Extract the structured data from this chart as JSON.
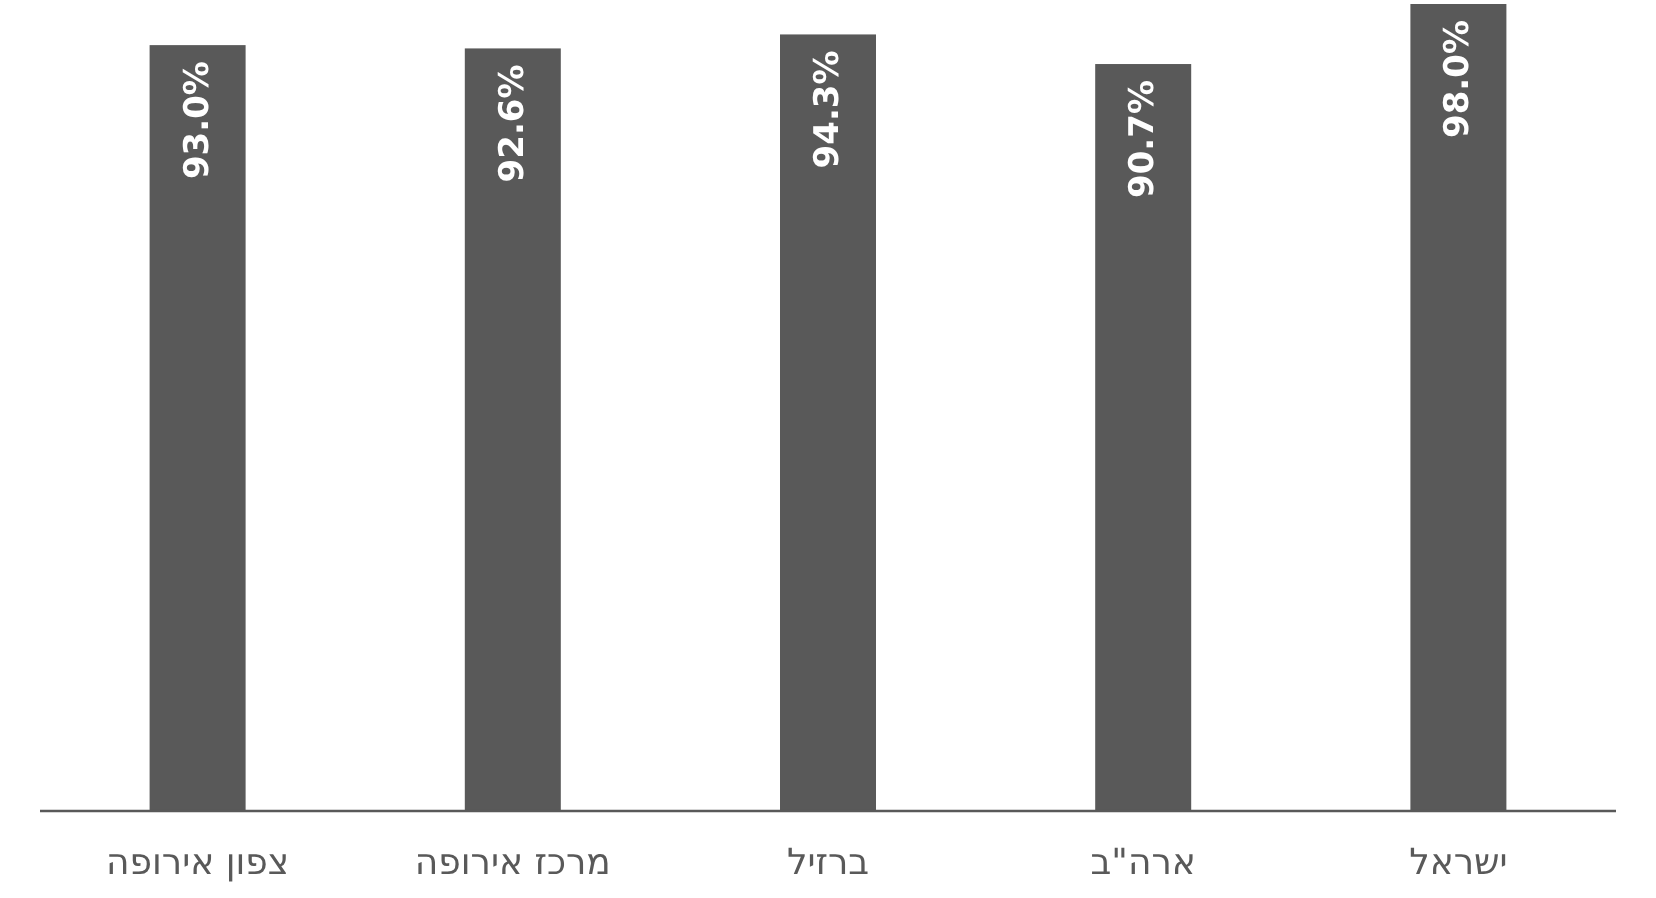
{
  "chart_data": {
    "type": "bar",
    "categories": [
      "צפון אירופה",
      "מרכז אירופה",
      "ברזיל",
      "ארה\"ב",
      "ישראל"
    ],
    "values": [
      93.0,
      92.6,
      94.3,
      90.7,
      98.0
    ],
    "value_labels": [
      "93.0%",
      "92.6%",
      "94.3%",
      "90.7%",
      "98.0%"
    ],
    "color": "#595959"
  }
}
